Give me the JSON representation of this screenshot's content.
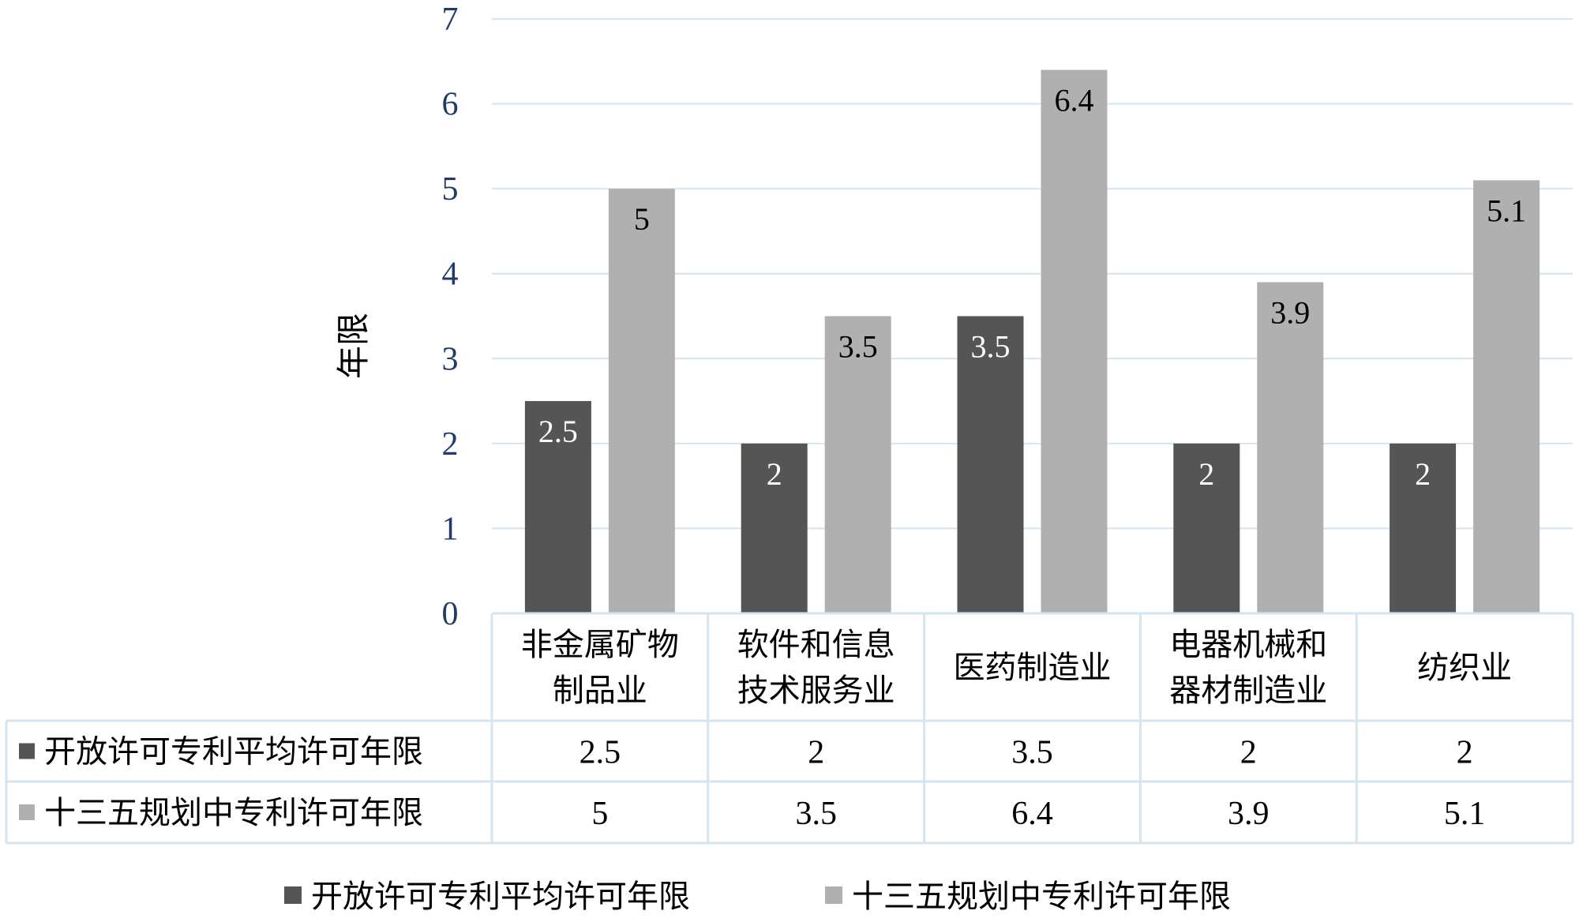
{
  "chart_data": {
    "type": "bar",
    "ylabel": "年限",
    "ylim": [
      0,
      7
    ],
    "yticks": [
      "0",
      "1",
      "2",
      "3",
      "4",
      "5",
      "6",
      "7"
    ],
    "grid": true,
    "legend_position": "bottom",
    "categories": [
      [
        "非金属矿物",
        "制品业"
      ],
      [
        "软件和信息",
        "技术服务业"
      ],
      [
        "医药制造业"
      ],
      [
        "电器机械和",
        "器材制造业"
      ],
      [
        "纺织业"
      ]
    ],
    "series": [
      {
        "name": "开放许可专利平均许可年限",
        "values": [
          2.5,
          2,
          3.5,
          2,
          2
        ],
        "labels": [
          "2.5",
          "2",
          "3.5",
          "2",
          "2"
        ],
        "color": "#555555",
        "label_color": "#ffffff"
      },
      {
        "name": "十三五规划中专利许可年限",
        "values": [
          5,
          3.5,
          6.4,
          3.9,
          5.1
        ],
        "labels": [
          "5",
          "3.5",
          "6.4",
          "3.9",
          "5.1"
        ],
        "color": "#b0b0b0",
        "label_color": "#000000"
      }
    ],
    "data_table": true
  },
  "colors": {
    "grid": "#d6e4ef",
    "table_border": "#d6e4ef",
    "axis_text": "#1f3b66"
  }
}
